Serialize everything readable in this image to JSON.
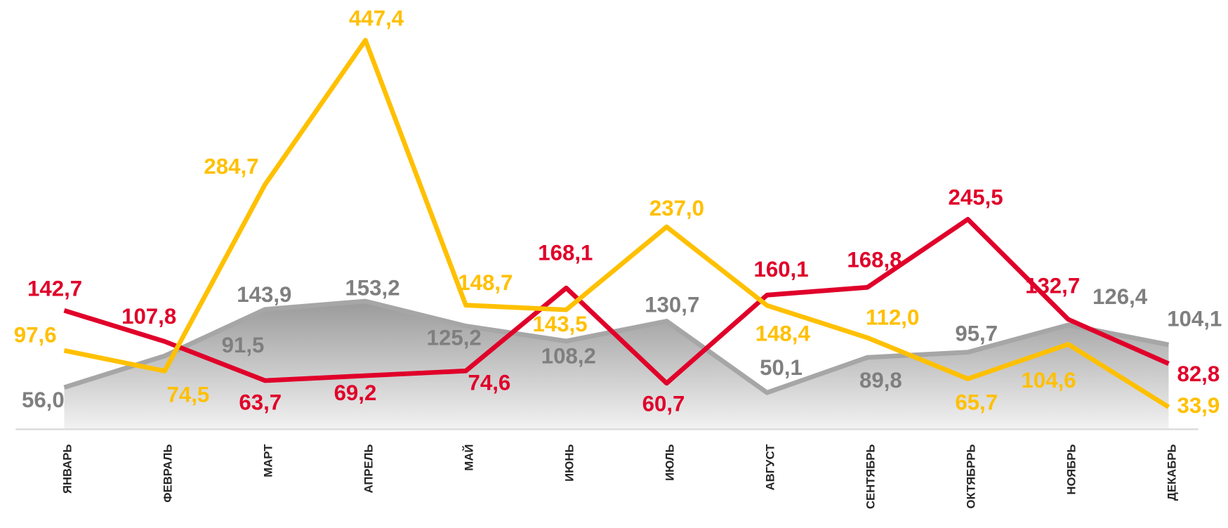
{
  "chart_data": {
    "type": "line",
    "categories": [
      "ЯНВАРЬ",
      "ФЕВРАЛЬ",
      "МАРТ",
      "АПРЕЛЬ",
      "МАЙ",
      "ИЮНЬ",
      "ИЮЛЬ",
      "АВГУСТ",
      "СЕНТЯБРЬ",
      "ОКТЯБРРЬ",
      "НОЯБРЬ",
      "ДЕКАБРЬ"
    ],
    "series": [
      {
        "kind": "area",
        "color": "#a6a6a6",
        "label_color": "#7f7f7f",
        "values": [
          56.0,
          91.5,
          143.9,
          153.2,
          125.2,
          108.2,
          130.7,
          50.1,
          89.8,
          95.7,
          126.4,
          104.1
        ],
        "value_labels": [
          "56,0",
          "91,5",
          "143,9",
          "153,2",
          "125,2",
          "108,2",
          "130,7",
          "50,1",
          "89,8",
          "95,7",
          "126,4",
          "104,1"
        ]
      },
      {
        "kind": "line",
        "color": "#e0002a",
        "label_color": "#e0002a",
        "values": [
          142.7,
          107.8,
          63.7,
          69.2,
          74.6,
          168.1,
          60.7,
          160.1,
          168.8,
          245.5,
          132.7,
          82.8
        ],
        "value_labels": [
          "142,7",
          "107,8",
          "63,7",
          "69,2",
          "74,6",
          "168,1",
          "60,7",
          "160,1",
          "168,8",
          "245,5",
          "132,7",
          "82,8"
        ]
      },
      {
        "kind": "line",
        "color": "#ffc000",
        "label_color": "#ffc000",
        "values": [
          97.6,
          74.5,
          284.7,
          447.4,
          148.7,
          143.5,
          237.0,
          148.4,
          112.0,
          65.7,
          104.6,
          33.9
        ],
        "value_labels": [
          "97,6",
          "74,5",
          "284,7",
          "447,4",
          "148,7",
          "143,5",
          "237,0",
          "148,4",
          "112,0",
          "65,7",
          "104,6",
          "33,9"
        ]
      }
    ],
    "ylim": [
      0,
      490
    ]
  }
}
